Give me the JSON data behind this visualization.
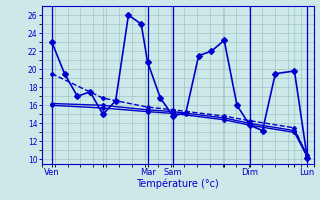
{
  "xlabel": "Température (°c)",
  "background_color": "#cce8e8",
  "line_color": "#0000cc",
  "grid_color": "#99bbbb",
  "yticks": [
    10,
    12,
    14,
    16,
    18,
    20,
    22,
    24,
    26
  ],
  "ylim": [
    9.5,
    27
  ],
  "xlim": [
    -0.3,
    21.0
  ],
  "xtick_labels": [
    "Ven",
    "",
    "Mar",
    "Sam",
    "",
    "Dim",
    "",
    "Lun"
  ],
  "xtick_positions": [
    0.5,
    4.5,
    8.0,
    10.0,
    14.0,
    16.0,
    19.5,
    20.5
  ],
  "vlines": [
    0.5,
    8.0,
    10.0,
    16.0,
    20.5
  ],
  "line1": {
    "x": [
      0.5,
      1.5,
      2.5,
      3.5,
      4.5,
      5.5,
      6.5,
      7.5,
      8.0,
      9.0,
      10.0,
      11.0,
      12.0,
      13.0,
      14.0,
      15.0,
      16.0,
      17.0,
      18.0,
      19.5,
      20.5
    ],
    "y": [
      23.0,
      19.5,
      17.0,
      17.5,
      15.0,
      16.5,
      26.0,
      25.0,
      20.8,
      16.8,
      14.8,
      15.2,
      21.5,
      22.0,
      23.2,
      16.0,
      13.8,
      13.2,
      19.5,
      19.8,
      10.2
    ],
    "lw": 1.2,
    "ms": 3
  },
  "line2": {
    "x": [
      0.5,
      4.5,
      8.0,
      10.0,
      14.0,
      16.0,
      19.5,
      20.5
    ],
    "y": [
      19.5,
      16.8,
      15.8,
      15.5,
      14.8,
      14.3,
      13.5,
      10.2
    ],
    "lw": 1.0,
    "ms": 2,
    "ls": "--"
  },
  "line3": {
    "x": [
      0.5,
      4.5,
      8.0,
      10.0,
      14.0,
      16.0,
      19.5,
      20.5
    ],
    "y": [
      16.2,
      16.0,
      15.5,
      15.3,
      14.6,
      14.0,
      13.2,
      10.5
    ],
    "lw": 1.0,
    "ms": 2,
    "ls": "-"
  },
  "line4": {
    "x": [
      0.5,
      4.5,
      8.0,
      10.0,
      14.0,
      16.0,
      19.5,
      20.5
    ],
    "y": [
      16.0,
      15.7,
      15.3,
      15.1,
      14.4,
      13.8,
      13.0,
      10.3
    ],
    "lw": 1.0,
    "ms": 2,
    "ls": "-"
  }
}
